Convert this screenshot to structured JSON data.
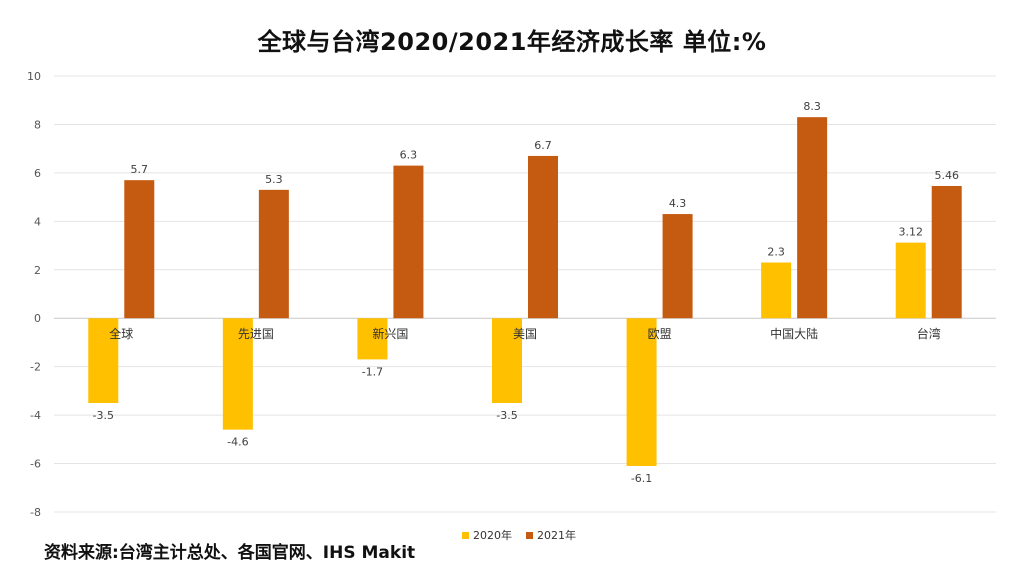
{
  "title": "全球与台湾2020/2021年经济成长率   单位:%",
  "source": "资料来源:台湾主计总处、各国官网、IHS Makit",
  "chart_data": {
    "type": "bar",
    "categories": [
      "全球",
      "先进国",
      "新兴国",
      "美国",
      "欧盟",
      "中国大陆",
      "台湾"
    ],
    "series": [
      {
        "name": "2020年",
        "color": "#FFC000",
        "values": [
          -3.5,
          -4.6,
          -1.7,
          -3.5,
          -6.1,
          2.3,
          3.12
        ],
        "labels": [
          "-3.5",
          "-4.6",
          "-1.7",
          "-3.5",
          "-6.1",
          "2.3",
          "3.12"
        ]
      },
      {
        "name": "2021年",
        "color": "#C55A11",
        "values": [
          5.7,
          5.3,
          6.3,
          6.7,
          4.3,
          8.3,
          5.46
        ],
        "labels": [
          "5.7",
          "5.3",
          "6.3",
          "6.7",
          "4.3",
          "8.3",
          "5.46"
        ]
      }
    ],
    "ylim": [
      -8,
      10
    ],
    "yticks": [
      10,
      8,
      6,
      4,
      2,
      0,
      -2,
      -4,
      -6,
      -8
    ],
    "grid": true,
    "legend_position": "bottom"
  }
}
